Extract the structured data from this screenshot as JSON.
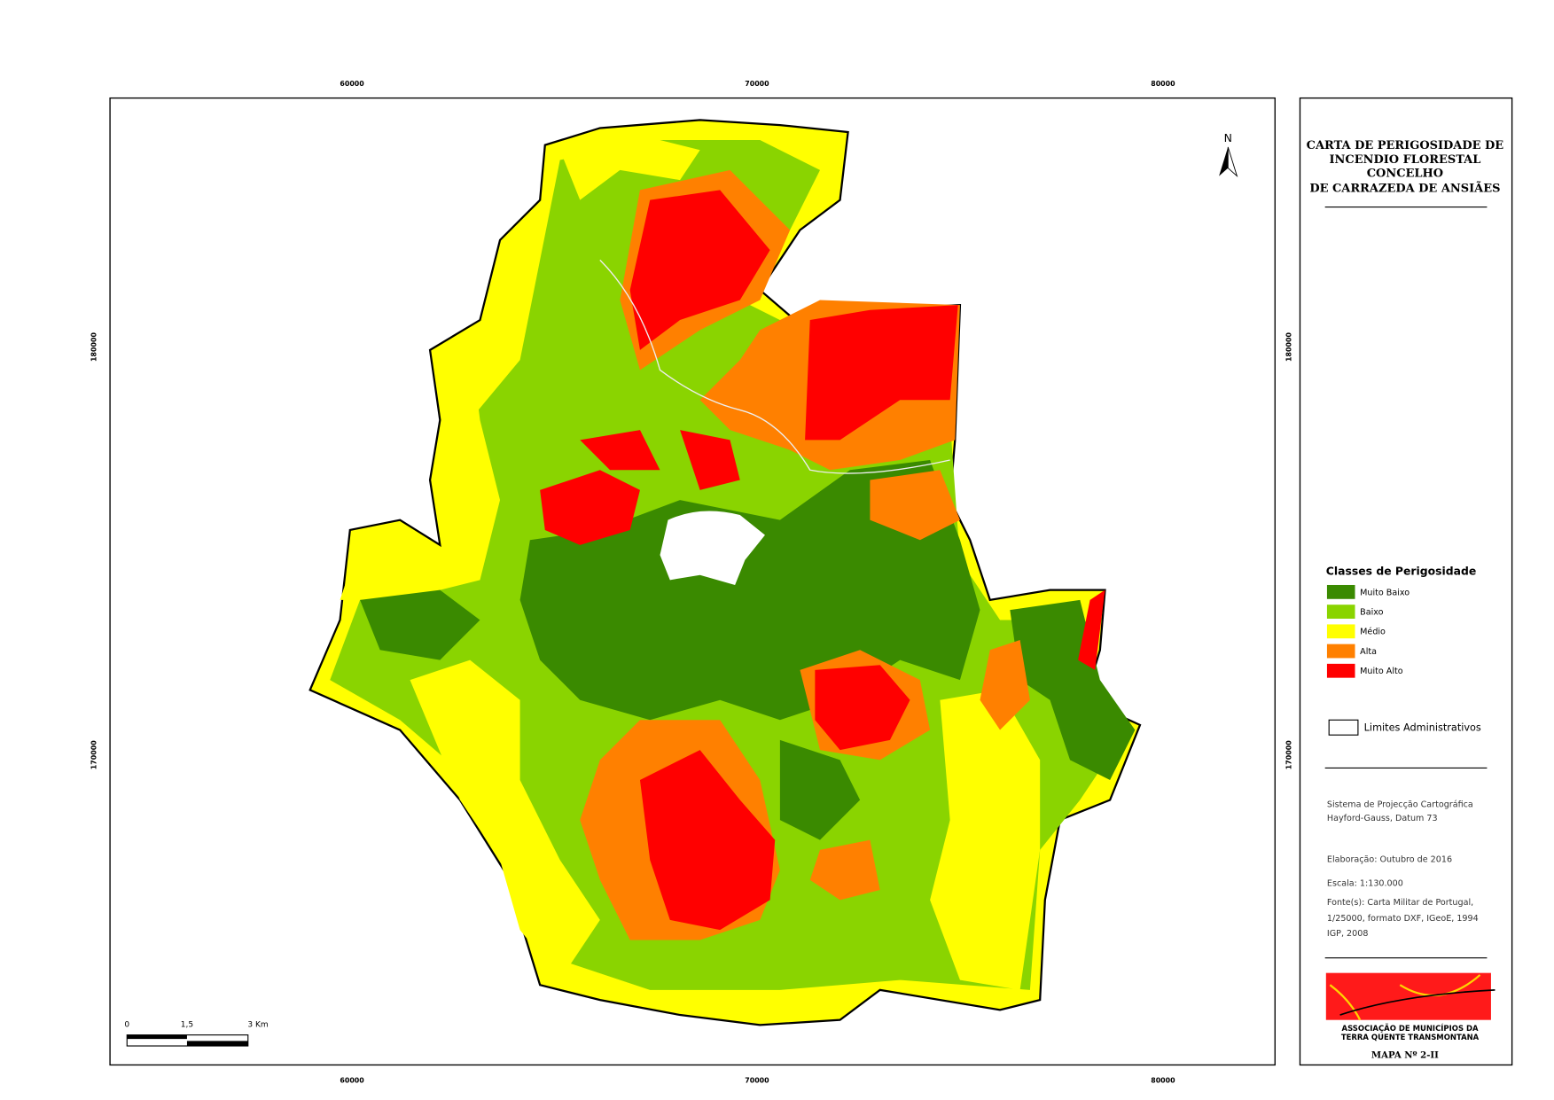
{
  "map": {
    "grid_labels": {
      "top": [
        60000,
        70000,
        80000
      ],
      "bottom": [
        60000,
        70000,
        80000
      ],
      "left": [
        180000,
        170000
      ],
      "right": [
        180000,
        170000
      ]
    },
    "north": "N",
    "scale_bar": [
      "0",
      "1,5",
      "3  Km"
    ]
  },
  "panel": {
    "title": [
      "CARTA DE PERIGOSIDADE DE",
      "INCENDIO FLORESTAL",
      "CONCELHO",
      "DE CARRAZEDA DE ANSIÃES"
    ],
    "legend": {
      "title": "Classes de Perigosidade",
      "items": [
        {
          "label": "Muito Baixo",
          "color": "#3a8a00"
        },
        {
          "label": "Baixo",
          "color": "#8ad400"
        },
        {
          "label": "Médio",
          "color": "#ffff00"
        },
        {
          "label": "Alta",
          "color": "#ff8000"
        },
        {
          "label": "Muito Alto",
          "color": "#ff0000"
        }
      ]
    },
    "boundary": "Limites Administrativos",
    "projection": [
      "Sistema de Projecção Cartográfica",
      "Hayford-Gauss, Datum 73"
    ],
    "elaboration": "Elaboração: Outubro de 2016",
    "scale": "Escala: 1:130.000",
    "sources": [
      "Fonte(s): Carta Militar de Portugal,",
      "1/25000, formato DXF, IGeoE, 1994",
      "IGP, 2008"
    ],
    "logo": [
      "ASSOCIAÇÃO DE MUNICÍPIOS DA",
      "TERRA QUENTE TRANSMONTANA"
    ],
    "map_number": "MAPA Nº 2-II"
  }
}
